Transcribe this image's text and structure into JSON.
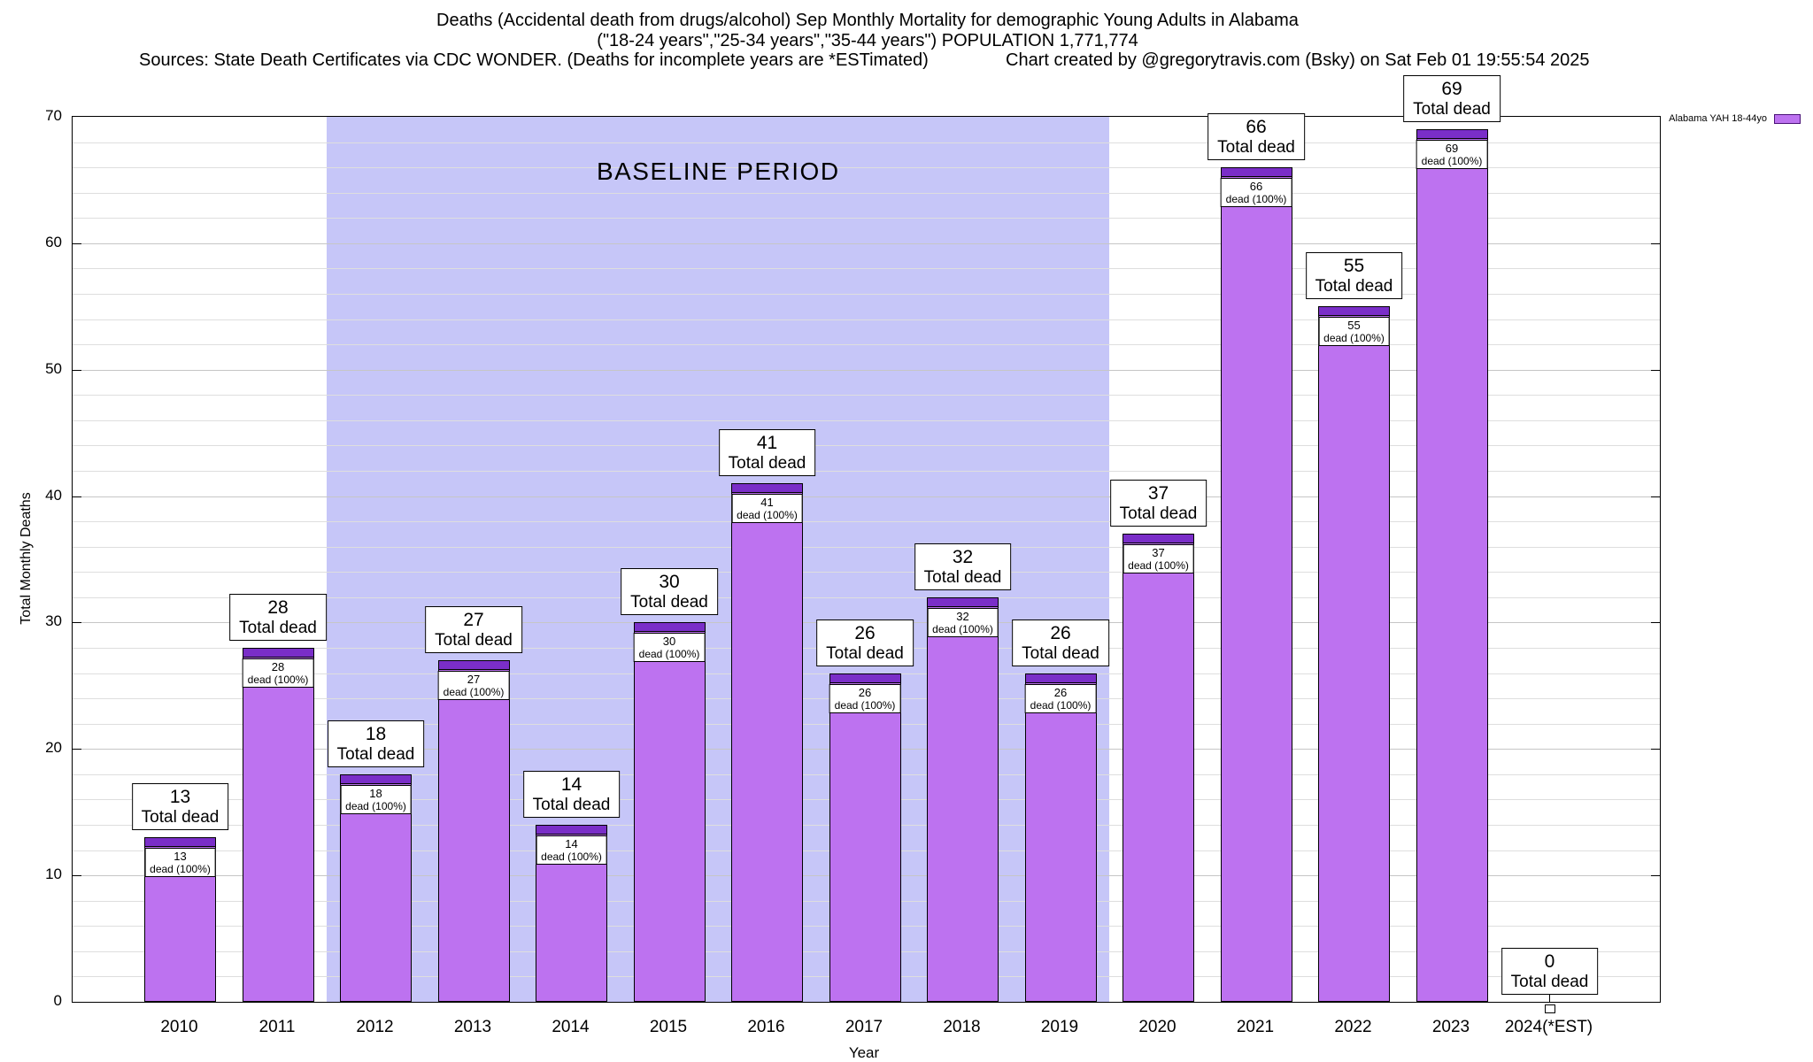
{
  "header": {
    "title_line1": "Deaths (Accidental death from drugs/alcohol) Sep Monthly Mortality for demographic Young Adults in Alabama",
    "title_line2": "(\"18-24 years\",\"25-34 years\",\"35-44 years\") POPULATION 1,771,774",
    "sources": "Sources: State Death Certificates via CDC WONDER. (Deaths for incomplete years are *ESTimated)",
    "credit": "Chart created by @gregorytravis.com (Bsky) on Sat Feb 01 19:55:54 2025"
  },
  "chart_data": {
    "type": "bar",
    "title": "Deaths (Accidental death from drugs/alcohol) Sep Monthly Mortality for demographic Young Adults in Alabama (\"18-24 years\",\"25-34 years\",\"35-44 years\") POPULATION 1,771,774",
    "categories": [
      "2010",
      "2011",
      "2012",
      "2013",
      "2014",
      "2015",
      "2016",
      "2017",
      "2018",
      "2019",
      "2020",
      "2021",
      "2022",
      "2023",
      "2024(*EST)"
    ],
    "values": [
      13,
      28,
      18,
      27,
      14,
      30,
      41,
      26,
      32,
      26,
      37,
      66,
      55,
      69,
      0
    ],
    "xlabel": "Year",
    "ylabel": "Total Monthly Deaths",
    "ylim": [
      0,
      70
    ],
    "yticks": [
      0,
      10,
      20,
      30,
      40,
      50,
      60,
      70
    ],
    "grid": true,
    "legend_position": "top-right-outside",
    "legend": [
      {
        "label": "Alabama YAH 18-44yo",
        "color": "#bd72f0"
      }
    ],
    "bar_label_suffix": "Total dead",
    "bar_inner_suffix": "dead (100%)",
    "baseline": {
      "label": "BASELINE PERIOD",
      "from": "2012",
      "to": "2019"
    },
    "colors": {
      "bar": "#bd72f0",
      "bar_cap": "#7a2ec8",
      "baseline_region": "#c6c6f8",
      "grid": "#dedede",
      "grid_major": "#c6c6c6"
    }
  }
}
